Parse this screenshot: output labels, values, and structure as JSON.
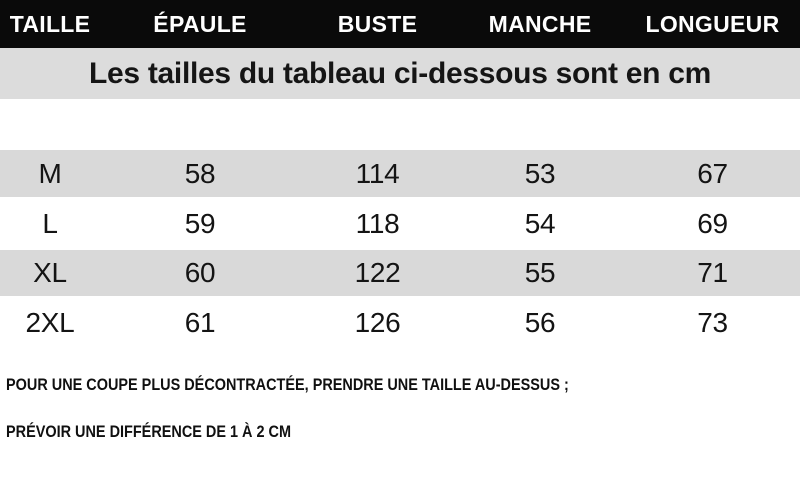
{
  "colors": {
    "header_bg": "#0a0a0a",
    "header_text": "#ffffff",
    "banner_bg": "#dcdcdc",
    "row_stripe_bg": "#d9d9d9",
    "body_text": "#141414"
  },
  "table": {
    "headers": [
      "TAILLE",
      "ÉPAULE",
      "BUSTE",
      "MANCHE",
      "LONGUEUR"
    ],
    "units_banner": "Les tailles du tableau ci-dessous sont en cm",
    "rows": [
      {
        "taille": "M",
        "epaule": "58",
        "buste": "114",
        "manche": "53",
        "longueur": "67"
      },
      {
        "taille": "L",
        "epaule": "59",
        "buste": "118",
        "manche": "54",
        "longueur": "69"
      },
      {
        "taille": "XL",
        "epaule": "60",
        "buste": "122",
        "manche": "55",
        "longueur": "71"
      },
      {
        "taille": "2XL",
        "epaule": "61",
        "buste": "126",
        "manche": "56",
        "longueur": "73"
      }
    ]
  },
  "notes": {
    "line1": "POUR UNE COUPE PLUS DÉCONTRACTÉE, PRENDRE UNE TAILLE AU-DESSUS ;",
    "line2": "PRÉVOIR UNE DIFFÉRENCE DE 1 À 2 CM"
  }
}
